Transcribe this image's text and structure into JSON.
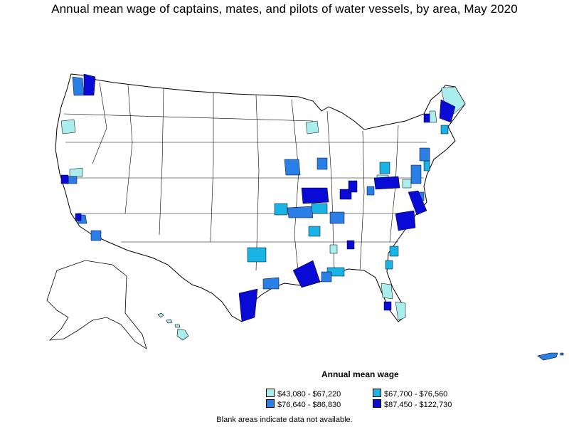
{
  "title": "Annual mean wage of captains, mates, and pilots of water vessels, by area, May 2020",
  "legend": {
    "title": "Annual mean wage",
    "items": [
      {
        "label": "$43,080 - $67,220",
        "color": "#a9eded"
      },
      {
        "label": "$67,700 - $76,560",
        "color": "#1ab3e6"
      },
      {
        "label": "$76,640 - $86,830",
        "color": "#2a7fe6"
      },
      {
        "label": "$87,450 - $122,730",
        "color": "#0a0ad6"
      }
    ]
  },
  "note": "Blank areas indicate data not available."
}
